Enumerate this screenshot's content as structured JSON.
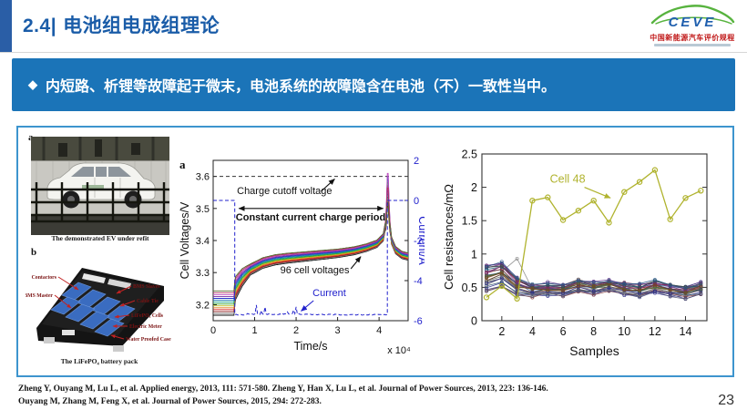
{
  "header": {
    "section": "2.4|",
    "title": "电池组电成组理论",
    "logo": {
      "brand": "CEVE",
      "subtitle_cn": "中国新能源汽车评价规程"
    }
  },
  "banner": {
    "bullet": "◆",
    "text": "内短路、析锂等故障起于微末，电池系统的故障隐含在电池（不）一致性当中。"
  },
  "figures": {
    "ev_photo": {
      "panel_label": "a",
      "caption": "The demonstrated EV under refit"
    },
    "battery_pack": {
      "panel_label": "b",
      "caption": "The LiFePO₄ battery pack",
      "labels_left": [
        "Contactors",
        "BMS Master"
      ],
      "labels_right": [
        "BMS Slaves",
        "Cable Tie",
        "LiFePO₄ Cells",
        "Electric Meter",
        "Water Proofed Case"
      ]
    }
  },
  "chart_data": [
    {
      "type": "line",
      "panel_label": "a",
      "xlabel": "Time/s",
      "x_scale_note": "x 10⁴",
      "ylabel_left": "Cell Voltages/V",
      "ylabel_right": "Current/A",
      "xlim": [
        0,
        4.7
      ],
      "xticks": [
        0,
        1,
        2,
        3,
        4
      ],
      "ylim_left": [
        3.15,
        3.65
      ],
      "yticks_left": [
        "3.2",
        "3.3",
        "3.4",
        "3.5",
        "3.6"
      ],
      "ylim_right": [
        -6,
        2
      ],
      "yticks_right": [
        "2",
        "0",
        "-2",
        "-4",
        "-6"
      ],
      "charge_cutoff_voltage": 3.6,
      "annotations": {
        "cutoff": "Charge cutoff voltage",
        "cc_period": "Constant current charge period",
        "cells": "96 cell voltages",
        "current": "Current"
      },
      "num_cells": 96,
      "voltage_base": [
        [
          0,
          3.205
        ],
        [
          0.5,
          3.205
        ],
        [
          0.53,
          3.25
        ],
        [
          0.7,
          3.285
        ],
        [
          0.9,
          3.31
        ],
        [
          1.2,
          3.33
        ],
        [
          1.5,
          3.34
        ],
        [
          1.8,
          3.345
        ],
        [
          2.2,
          3.35
        ],
        [
          2.6,
          3.355
        ],
        [
          3.0,
          3.36
        ],
        [
          3.4,
          3.368
        ],
        [
          3.7,
          3.378
        ],
        [
          3.95,
          3.39
        ],
        [
          4.1,
          3.41
        ],
        [
          4.17,
          3.46
        ],
        [
          4.21,
          3.59
        ],
        [
          4.25,
          3.46
        ],
        [
          4.3,
          3.4
        ],
        [
          4.4,
          3.37
        ],
        [
          4.55,
          3.355
        ],
        [
          4.7,
          3.35
        ]
      ],
      "initial_spread": 0.038,
      "curve_colors": [
        "#111111",
        "#7f7f7f",
        "#8b1a1a",
        "#d62728",
        "#e07b20",
        "#bcbd22",
        "#2ca02c",
        "#17a085",
        "#1f77b4",
        "#2233cc",
        "#7a2ea0",
        "#c050c0",
        "#b03060",
        "#556b2f"
      ],
      "current_color": "#2020cc",
      "current_rest_level": 0,
      "current_charge_level": -5.7,
      "current_profile": [
        [
          0,
          0
        ],
        [
          0.52,
          0
        ],
        [
          0.52,
          -5.7
        ],
        [
          4.2,
          -5.7
        ],
        [
          4.2,
          0
        ],
        [
          4.7,
          0
        ]
      ]
    },
    {
      "type": "line",
      "xlabel": "Samples",
      "ylabel": "Cell resistances/mΩ",
      "xlim": [
        0.7,
        15.4
      ],
      "xticks": [
        2,
        4,
        6,
        8,
        10,
        12,
        14
      ],
      "ylim": [
        0,
        2.5
      ],
      "yticks": [
        "0",
        "0.5",
        "1",
        "1.5",
        "2",
        "2.5"
      ],
      "samples": [
        1,
        2,
        3,
        4,
        5,
        6,
        7,
        8,
        9,
        10,
        11,
        12,
        13,
        14,
        15
      ],
      "highlight": {
        "name": "Cell 48",
        "color": "#b0b32e",
        "values": [
          0.35,
          0.52,
          0.33,
          1.8,
          1.85,
          1.51,
          1.65,
          1.8,
          1.47,
          1.93,
          2.08,
          2.26,
          1.52,
          1.84,
          1.95
        ]
      },
      "cluster_mean": [
        0.62,
        0.68,
        0.5,
        0.44,
        0.46,
        0.44,
        0.52,
        0.47,
        0.52,
        0.47,
        0.44,
        0.5,
        0.46,
        0.42,
        0.48
      ],
      "cluster_count": 28,
      "cluster_spread": 0.28,
      "cluster_colors": [
        "#8a8a8a",
        "#2b2b88",
        "#5a2d8a",
        "#8a2b5a",
        "#2f4f4f",
        "#4f6b2f",
        "#7a4520",
        "#2b5a8a",
        "#6a6a6a",
        "#8a3030",
        "#33508a",
        "#703080",
        "#305070",
        "#803a3a",
        "#505050",
        "#20607a",
        "#6a2d5a",
        "#44447a",
        "#555577",
        "#775555"
      ]
    }
  ],
  "footer": {
    "references": [
      "Zheng Y, Ouyang M, Lu L, et al. Applied energy, 2013, 111: 571-580. Zheng Y, Han X, Lu L, et al. Journal of Power Sources, 2013, 223: 136-146.",
      "Ouyang M, Zhang M, Feng X, et al. Journal of Power Sources, 2015, 294: 272-283."
    ],
    "page_number": "23"
  },
  "colors": {
    "accent_blue": "#2a5ea6",
    "title_blue": "#1a5ca8",
    "banner_blue": "#1b74b8",
    "frame_blue": "#3d95ce",
    "cell48_olive": "#b0b32e",
    "current_blue": "#2020cc",
    "label_red": "#7a1212"
  }
}
